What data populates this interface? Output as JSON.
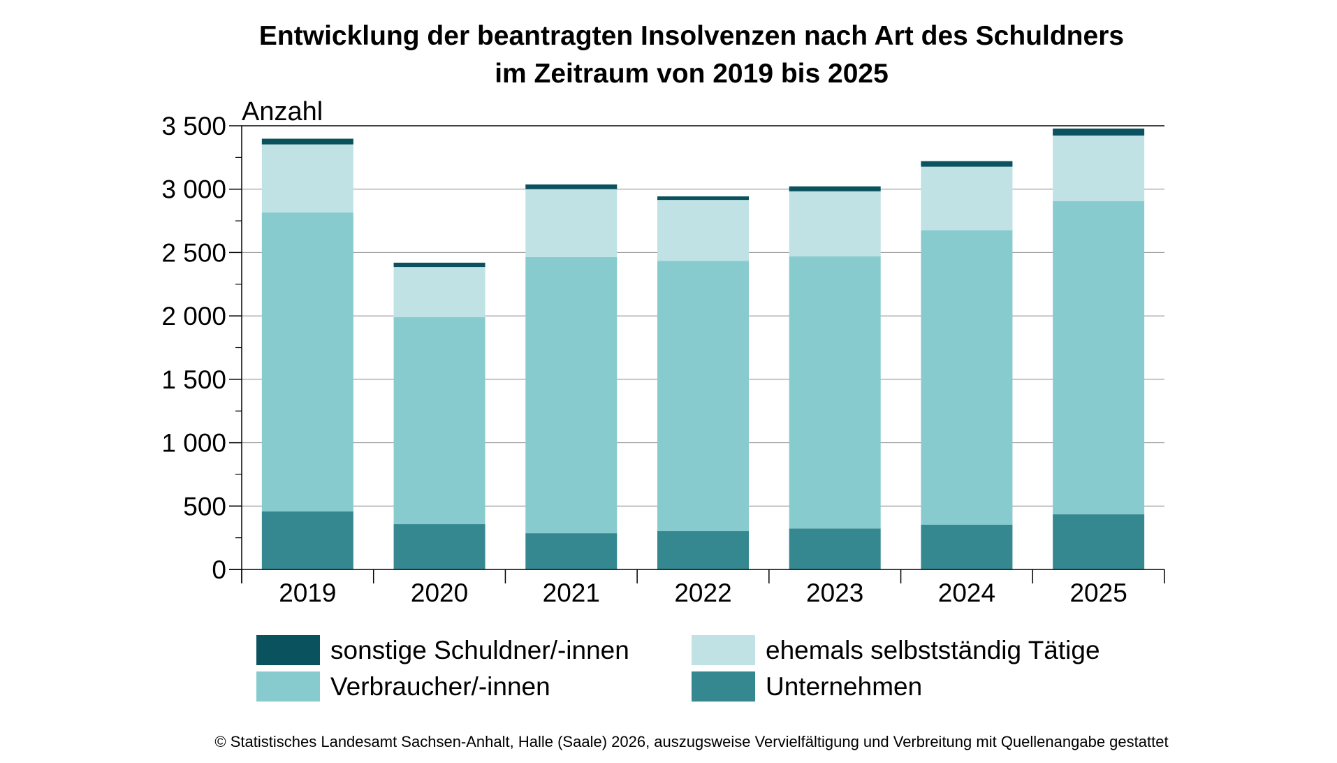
{
  "chart_data": {
    "type": "bar",
    "stacked": true,
    "title": "Entwicklung der beantragten Insolvenzen nach Art des Schuldners",
    "subtitle": "im Zeitraum von 2019 bis 2025",
    "ylabel": "Anzahl",
    "xlabel": "",
    "ylim": [
      0,
      3500
    ],
    "yticks": [
      0,
      500,
      1000,
      1500,
      2000,
      2500,
      3000,
      3500
    ],
    "ytick_labels": [
      "0",
      "500",
      "1 000",
      "1 500",
      "2 000",
      "2 500",
      "3 000",
      "3 500"
    ],
    "grid": true,
    "legend_position": "bottom",
    "categories": [
      "2019",
      "2020",
      "2021",
      "2022",
      "2023",
      "2024",
      "2025"
    ],
    "series": [
      {
        "name": "Unternehmen",
        "color": "#358890",
        "values": [
          458,
          358,
          286,
          303,
          323,
          353,
          435
        ]
      },
      {
        "name": "Verbraucher/-innen",
        "color": "#88cbcf",
        "values": [
          2358,
          1632,
          2179,
          2132,
          2147,
          2324,
          2471
        ]
      },
      {
        "name": "ehemals selbstständig Tätige",
        "color": "#c0e2e5",
        "values": [
          537,
          396,
          535,
          480,
          513,
          500,
          517
        ]
      },
      {
        "name": "sonstige Schuldner/-innen",
        "color": "#0a525e",
        "values": [
          45,
          34,
          37,
          28,
          39,
          44,
          55
        ]
      }
    ],
    "legend_order": [
      3,
      2,
      1,
      0
    ]
  },
  "footer": "© Statistisches Landesamt Sachsen-Anhalt, Halle (Saale) 2026, auszugsweise Vervielfältigung und Verbreitung mit Quellenangabe gestattet"
}
